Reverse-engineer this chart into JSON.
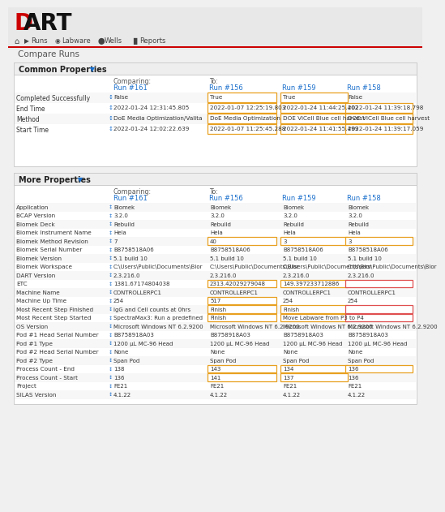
{
  "title": "DART",
  "page_title": "Compare Runs",
  "bg_color": "#f0f0f0",
  "panel_bg": "#ffffff",
  "header_bg": "#e8e8e8",
  "red_color": "#cc0000",
  "blue_color": "#1a6fcc",
  "text_color": "#333333",
  "light_text": "#555555",
  "common_props_label": "Common Properties",
  "more_props_label": "More Properties",
  "comparing_label": "Comparing:",
  "to_label": "To:",
  "run_comparing": "Run #161",
  "runs_to": [
    "Run #156",
    "Run #159",
    "Run #158"
  ],
  "common_rows": [
    {
      "label": "Completed Successfully",
      "comparing": "False",
      "to": [
        "True",
        "True",
        "False"
      ],
      "highlight": [
        true,
        true,
        false
      ],
      "highlight_color": [
        "orange",
        "orange",
        "none"
      ]
    },
    {
      "label": "End Time",
      "comparing": "2022-01-24 12:31:45.805",
      "to": [
        "2022-01-07 12:25:19.803",
        "2022-01-24 11:44:25.402",
        "2022-01-24 11:39:18.798"
      ],
      "highlight": [
        true,
        true,
        true
      ],
      "highlight_color": [
        "orange",
        "orange",
        "orange"
      ]
    },
    {
      "label": "Method",
      "comparing": "DoE Media Optimization/Valita",
      "to": [
        "DoE Media Optimization",
        "DOE ViCell Blue cell harvest",
        "DOE ViCell Blue cell harvest"
      ],
      "highlight": [
        true,
        true,
        true
      ],
      "highlight_color": [
        "orange",
        "orange",
        "orange"
      ]
    },
    {
      "label": "Start Time",
      "comparing": "2022-01-24 12:02:22.639",
      "to": [
        "2022-01-07 11:25:45.288",
        "2022-01-24 11:41:55.499",
        "2022-01-24 11:39:17.059"
      ],
      "highlight": [
        true,
        true,
        true
      ],
      "highlight_color": [
        "orange",
        "orange",
        "orange"
      ]
    }
  ],
  "more_rows": [
    {
      "label": "Application",
      "comparing": "Biomek",
      "to": [
        "Biomek",
        "Biomek",
        "Biomek"
      ],
      "highlight": [
        false,
        false,
        false
      ],
      "highlight_color": [
        "none",
        "none",
        "none"
      ]
    },
    {
      "label": "BCAP Version",
      "comparing": "3.2.0",
      "to": [
        "3.2.0",
        "3.2.0",
        "3.2.0"
      ],
      "highlight": [
        false,
        false,
        false
      ],
      "highlight_color": [
        "none",
        "none",
        "none"
      ]
    },
    {
      "label": "Biomek Deck",
      "comparing": "Rebuild",
      "to": [
        "Rebuild",
        "Rebuild",
        "Rebuild"
      ],
      "highlight": [
        false,
        false,
        false
      ],
      "highlight_color": [
        "none",
        "none",
        "none"
      ]
    },
    {
      "label": "Biomek Instrument Name",
      "comparing": "Hela",
      "to": [
        "Hela",
        "Hela",
        "Hela"
      ],
      "highlight": [
        false,
        false,
        false
      ],
      "highlight_color": [
        "none",
        "none",
        "none"
      ]
    },
    {
      "label": "Biomek Method Revision",
      "comparing": "7",
      "to": [
        "40",
        "3",
        "3"
      ],
      "highlight": [
        true,
        true,
        true
      ],
      "highlight_color": [
        "orange",
        "orange",
        "orange"
      ]
    },
    {
      "label": "Biomek Serial Number",
      "comparing": "B8758518A06",
      "to": [
        "B8758518A06",
        "B8758518A06",
        "B8758518A06"
      ],
      "highlight": [
        false,
        false,
        false
      ],
      "highlight_color": [
        "none",
        "none",
        "none"
      ]
    },
    {
      "label": "Biomek Version",
      "comparing": "5.1 build 10",
      "to": [
        "5.1 build 10",
        "5.1 build 10",
        "5.1 build 10"
      ],
      "highlight": [
        false,
        false,
        false
      ],
      "highlight_color": [
        "none",
        "none",
        "none"
      ]
    },
    {
      "label": "Biomek Workspace",
      "comparing": "C:\\Users\\Public\\Documents\\Bior",
      "to": [
        "C:\\Users\\Public\\Documents\\Bior",
        "C:\\Users\\Public\\Documents\\Bior",
        "C:\\Users\\Public\\Documents\\Bior"
      ],
      "highlight": [
        false,
        false,
        false
      ],
      "highlight_color": [
        "none",
        "none",
        "none"
      ]
    },
    {
      "label": "DART Version",
      "comparing": "2.3.216.0",
      "to": [
        "2.3.216.0",
        "2.3.216.0",
        "2.3.216.0"
      ],
      "highlight": [
        false,
        false,
        false
      ],
      "highlight_color": [
        "none",
        "none",
        "none"
      ]
    },
    {
      "label": "ETC",
      "comparing": "1381.67174804038",
      "to": [
        "2313.42029279048",
        "149.397233712886",
        ""
      ],
      "highlight": [
        true,
        true,
        true
      ],
      "highlight_color": [
        "orange",
        "orange",
        "red"
      ]
    },
    {
      "label": "Machine Name",
      "comparing": "CONTROLLERPC1",
      "to": [
        "CONTROLLERPC1",
        "CONTROLLERPC1",
        "CONTROLLERPC1"
      ],
      "highlight": [
        false,
        false,
        false
      ],
      "highlight_color": [
        "none",
        "none",
        "none"
      ]
    },
    {
      "label": "Machine Up Time",
      "comparing": "254",
      "to": [
        "517",
        "254",
        "254"
      ],
      "highlight": [
        true,
        false,
        false
      ],
      "highlight_color": [
        "orange",
        "none",
        "none"
      ]
    },
    {
      "label": "Most Recent Step Finished",
      "comparing": "IgG and Cell counts at 0hrs",
      "to": [
        "Finish",
        "Finish",
        ""
      ],
      "highlight": [
        true,
        true,
        true
      ],
      "highlight_color": [
        "orange",
        "orange",
        "red"
      ]
    },
    {
      "label": "Most Recent Step Started",
      "comparing": "SpectraMax3: Run a predefined",
      "to": [
        "Finish",
        "Move Labware from P3 to P4",
        ""
      ],
      "highlight": [
        true,
        true,
        true
      ],
      "highlight_color": [
        "orange",
        "orange",
        "red"
      ]
    },
    {
      "label": "OS Version",
      "comparing": "Microsoft Windows NT 6.2.9200",
      "to": [
        "Microsoft Windows NT 6.2.9200",
        "Microsoft Windows NT 6.2.9200",
        "Microsoft Windows NT 6.2.9200"
      ],
      "highlight": [
        false,
        false,
        false
      ],
      "highlight_color": [
        "none",
        "none",
        "none"
      ]
    },
    {
      "label": "Pod #1 Head Serial Number",
      "comparing": "B8758918A03",
      "to": [
        "B8758918A03",
        "B8758918A03",
        "B8758918A03"
      ],
      "highlight": [
        false,
        false,
        false
      ],
      "highlight_color": [
        "none",
        "none",
        "none"
      ]
    },
    {
      "label": "Pod #1 Type",
      "comparing": "1200 μL MC-96 Head",
      "to": [
        "1200 μL MC-96 Head",
        "1200 μL MC-96 Head",
        "1200 μL MC-96 Head"
      ],
      "highlight": [
        false,
        false,
        false
      ],
      "highlight_color": [
        "none",
        "none",
        "none"
      ]
    },
    {
      "label": "Pod #2 Head Serial Number",
      "comparing": "None",
      "to": [
        "None",
        "None",
        "None"
      ],
      "highlight": [
        false,
        false,
        false
      ],
      "highlight_color": [
        "none",
        "none",
        "none"
      ]
    },
    {
      "label": "Pod #2 Type",
      "comparing": "Span Pod",
      "to": [
        "Span Pod",
        "Span Pod",
        "Span Pod"
      ],
      "highlight": [
        false,
        false,
        false
      ],
      "highlight_color": [
        "none",
        "none",
        "none"
      ]
    },
    {
      "label": "Process Count - End",
      "comparing": "138",
      "to": [
        "143",
        "134",
        "136"
      ],
      "highlight": [
        true,
        true,
        true
      ],
      "highlight_color": [
        "orange",
        "orange",
        "orange"
      ]
    },
    {
      "label": "Process Count - Start",
      "comparing": "136",
      "to": [
        "141",
        "137",
        "136"
      ],
      "highlight": [
        true,
        true,
        false
      ],
      "highlight_color": [
        "orange",
        "orange",
        "none"
      ]
    },
    {
      "label": "Project",
      "comparing": "FE21",
      "to": [
        "FE21",
        "FE21",
        "FE21"
      ],
      "highlight": [
        false,
        false,
        false
      ],
      "highlight_color": [
        "none",
        "none",
        "none"
      ]
    },
    {
      "label": "SILAS Version",
      "comparing": "4.1.22",
      "to": [
        "4.1.22",
        "4.1.22",
        "4.1.22"
      ],
      "highlight": [
        false,
        false,
        false
      ],
      "highlight_color": [
        "none",
        "none",
        "none"
      ]
    }
  ]
}
